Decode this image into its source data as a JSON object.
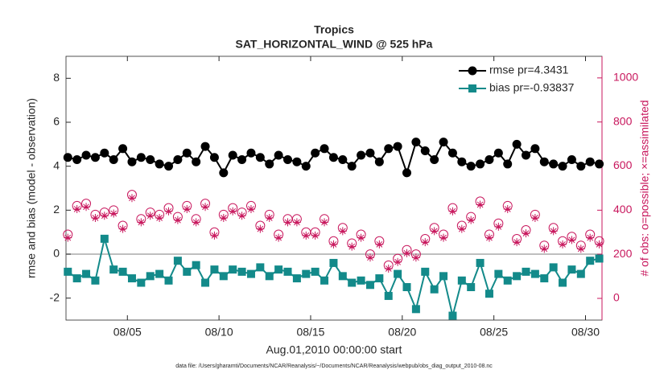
{
  "chart_data": {
    "type": "line",
    "title": "Tropics",
    "subtitle": "SAT_HORIZONTAL_WIND @ 525 hPa",
    "xlabel": "Aug.01,2010 00:00:00 start",
    "ylabel": "rmse and bias (model - observation)",
    "y2label": "# of obs: o=possible; ×=assimilated",
    "footnote": "data file: /Users/gharamti/Documents/NCAR/Reanalysis/~/Documents/NCAR/Reanalysis/webpub/obs_diag_output_2010-08.nc",
    "legend": "upper right",
    "xlim": [
      1.65,
      30.9
    ],
    "xticks": [
      {
        "value": 5,
        "label": "08/05"
      },
      {
        "value": 10,
        "label": "08/10"
      },
      {
        "value": 15,
        "label": "08/15"
      },
      {
        "value": 20,
        "label": "08/20"
      },
      {
        "value": 25,
        "label": "08/25"
      },
      {
        "value": 30,
        "label": "08/30"
      }
    ],
    "ylim": [
      -3,
      9
    ],
    "yticks": [
      -2,
      0,
      2,
      4,
      6,
      8
    ],
    "y2lim": [
      -98.5,
      1098
    ],
    "y2ticks": [
      0,
      200,
      400,
      600,
      800,
      1000
    ],
    "y2color": "#c8175d",
    "x": [
      1.75,
      2.25,
      2.75,
      3.25,
      3.75,
      4.25,
      4.75,
      5.25,
      5.75,
      6.25,
      6.75,
      7.25,
      7.75,
      8.25,
      8.75,
      9.25,
      9.75,
      10.25,
      10.75,
      11.25,
      11.75,
      12.25,
      12.75,
      13.25,
      13.75,
      14.25,
      14.75,
      15.25,
      15.75,
      16.25,
      16.75,
      17.25,
      17.75,
      18.25,
      18.75,
      19.25,
      19.75,
      20.25,
      20.75,
      21.25,
      21.75,
      22.25,
      22.75,
      23.25,
      23.75,
      24.25,
      24.75,
      25.25,
      25.75,
      26.25,
      26.75,
      27.25,
      27.75,
      28.25,
      28.75,
      29.25,
      29.75,
      30.25,
      30.75
    ],
    "series": [
      {
        "name": "rmse pr=4.3431",
        "color": "#000000",
        "marker": "circle",
        "line": true,
        "values": [
          4.4,
          4.3,
          4.5,
          4.4,
          4.6,
          4.3,
          4.8,
          4.2,
          4.4,
          4.3,
          4.1,
          4.0,
          4.3,
          4.6,
          4.2,
          4.9,
          4.4,
          3.7,
          4.5,
          4.3,
          4.6,
          4.4,
          4.1,
          4.5,
          4.3,
          4.2,
          4.0,
          4.6,
          4.8,
          4.4,
          4.3,
          4.0,
          4.5,
          4.6,
          4.2,
          4.8,
          4.9,
          3.7,
          5.1,
          4.7,
          4.3,
          5.1,
          4.6,
          4.2,
          4.0,
          4.1,
          4.3,
          4.6,
          4.1,
          5.0,
          4.5,
          4.8,
          4.2,
          4.1,
          4.0,
          4.3,
          4.0,
          4.2,
          4.1
        ]
      },
      {
        "name": "bias pr=-0.93837",
        "color": "#138a8a",
        "marker": "square",
        "line": true,
        "values": [
          -0.8,
          -1.1,
          -0.9,
          -1.2,
          0.7,
          -0.7,
          -0.8,
          -1.1,
          -1.3,
          -1.0,
          -0.9,
          -1.2,
          -0.3,
          -0.8,
          -0.5,
          -1.3,
          -0.7,
          -1.0,
          -0.7,
          -0.8,
          -0.9,
          -0.6,
          -1.0,
          -0.7,
          -0.8,
          -1.1,
          -0.9,
          -0.8,
          -1.2,
          -0.4,
          -1.0,
          -1.3,
          -1.2,
          -1.4,
          -1.1,
          -1.9,
          -0.9,
          -1.5,
          -2.5,
          -0.8,
          -1.6,
          -1.0,
          -2.8,
          -1.2,
          -1.5,
          -0.4,
          -1.8,
          -0.9,
          -1.2,
          -1.0,
          -0.8,
          -0.9,
          -1.1,
          -0.6,
          -1.3,
          -0.7,
          -0.9,
          -0.3,
          -0.2
        ]
      },
      {
        "color": "#c8175d",
        "marker": "open-circle",
        "line": false,
        "axis": "y2",
        "values": [
          290,
          420,
          430,
          380,
          390,
          400,
          330,
          470,
          360,
          390,
          380,
          410,
          370,
          420,
          360,
          430,
          300,
          380,
          410,
          390,
          420,
          330,
          380,
          290,
          360,
          360,
          300,
          300,
          360,
          260,
          320,
          250,
          290,
          200,
          260,
          150,
          180,
          220,
          200,
          270,
          320,
          290,
          410,
          330,
          370,
          440,
          290,
          340,
          420,
          270,
          310,
          380,
          240,
          320,
          260,
          280,
          240,
          290,
          260
        ]
      },
      {
        "color": "#c8175d",
        "marker": "asterisk",
        "line": false,
        "axis": "y2",
        "values": [
          275,
          405,
          415,
          365,
          375,
          385,
          315,
          455,
          345,
          375,
          365,
          395,
          355,
          405,
          345,
          415,
          285,
          365,
          395,
          375,
          405,
          315,
          365,
          275,
          345,
          345,
          285,
          285,
          345,
          245,
          305,
          235,
          275,
          185,
          245,
          135,
          165,
          205,
          185,
          255,
          305,
          275,
          395,
          315,
          355,
          425,
          275,
          325,
          405,
          255,
          295,
          365,
          225,
          305,
          245,
          265,
          225,
          275,
          245
        ]
      }
    ]
  }
}
